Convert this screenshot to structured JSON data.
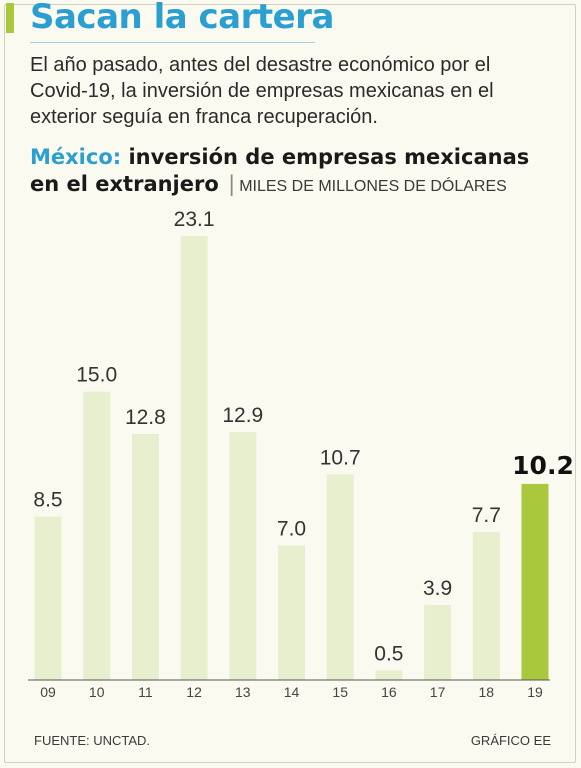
{
  "header": {
    "title": "Sacan la cartera",
    "subtitle": "El año pasado, antes del desastre económico por el Covid-19, la inversión de empresas mexicanas en el exterior seguía en franca recuperación."
  },
  "chart_heading": {
    "country": "México:",
    "title": "inversión de empresas mexicanas en el extranjero",
    "separator": "|",
    "unit": "MILES DE MILLONES DE DÓLARES"
  },
  "chart_data": {
    "type": "bar",
    "categories": [
      "09",
      "10",
      "11",
      "12",
      "13",
      "14",
      "15",
      "16",
      "17",
      "18",
      "19"
    ],
    "values": [
      8.5,
      15.0,
      12.8,
      23.1,
      12.9,
      7.0,
      10.7,
      0.5,
      3.9,
      7.7,
      10.2
    ],
    "value_labels": [
      "8.5",
      "15.0",
      "12.8",
      "23.1",
      "12.9",
      "7.0",
      "10.7",
      "0.5",
      "3.9",
      "7.7",
      "10.2"
    ],
    "highlight_index": 10,
    "bar_color": "#e8efcf",
    "highlight_color": "#a9c83b",
    "ylim": [
      0,
      23.1
    ]
  },
  "footer": {
    "source": "FUENTE: UNCTAD.",
    "credit": "GRÁFICO EE"
  },
  "colors": {
    "accent": "#2a9fd0",
    "brand_green": "#a9c83b",
    "background": "#fbfaf1"
  }
}
